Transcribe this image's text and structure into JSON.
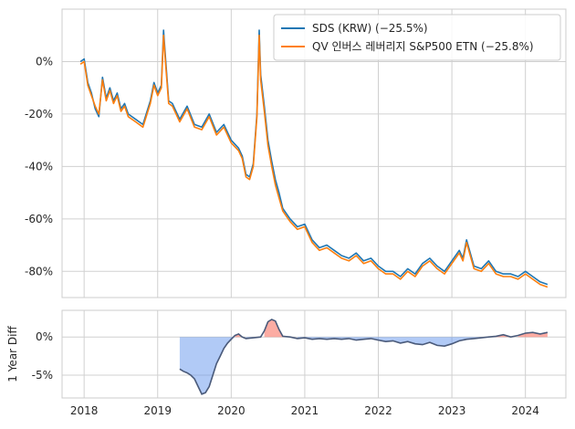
{
  "chart_data": [
    {
      "type": "line",
      "panel": "main",
      "x_ticks": [
        "2018",
        "2019",
        "2020",
        "2021",
        "2022",
        "2023",
        "2024"
      ],
      "y_ticks": [
        "0%",
        "-20%",
        "-40%",
        "-60%",
        "-80%"
      ],
      "y_tick_values": [
        0,
        -20,
        -40,
        -60,
        -80
      ],
      "ylim": [
        -90,
        20
      ],
      "xlim": [
        2017.7,
        2024.55
      ],
      "grid": true,
      "legend_position": "top-right",
      "series": [
        {
          "name": "SDS (KRW) (−25.5%)",
          "color": "#1f77b4",
          "points": [
            [
              2017.95,
              0
            ],
            [
              2018.0,
              1
            ],
            [
              2018.05,
              -8
            ],
            [
              2018.1,
              -12
            ],
            [
              2018.15,
              -18
            ],
            [
              2018.2,
              -21
            ],
            [
              2018.25,
              -6
            ],
            [
              2018.3,
              -14
            ],
            [
              2018.35,
              -10
            ],
            [
              2018.4,
              -15
            ],
            [
              2018.45,
              -12
            ],
            [
              2018.5,
              -18
            ],
            [
              2018.55,
              -16
            ],
            [
              2018.6,
              -20
            ],
            [
              2018.7,
              -22
            ],
            [
              2018.8,
              -24
            ],
            [
              2018.9,
              -15
            ],
            [
              2018.95,
              -8
            ],
            [
              2019.0,
              -12
            ],
            [
              2019.05,
              -9
            ],
            [
              2019.08,
              12
            ],
            [
              2019.1,
              4
            ],
            [
              2019.15,
              -15
            ],
            [
              2019.2,
              -16
            ],
            [
              2019.3,
              -22
            ],
            [
              2019.4,
              -17
            ],
            [
              2019.5,
              -24
            ],
            [
              2019.6,
              -25
            ],
            [
              2019.7,
              -20
            ],
            [
              2019.8,
              -27
            ],
            [
              2019.9,
              -24
            ],
            [
              2020.0,
              -30
            ],
            [
              2020.1,
              -33
            ],
            [
              2020.15,
              -36
            ],
            [
              2020.2,
              -43
            ],
            [
              2020.25,
              -44
            ],
            [
              2020.3,
              -39
            ],
            [
              2020.35,
              -20
            ],
            [
              2020.38,
              12
            ],
            [
              2020.4,
              -5
            ],
            [
              2020.45,
              -17
            ],
            [
              2020.5,
              -30
            ],
            [
              2020.55,
              -38
            ],
            [
              2020.6,
              -45
            ],
            [
              2020.65,
              -50
            ],
            [
              2020.7,
              -56
            ],
            [
              2020.8,
              -60
            ],
            [
              2020.9,
              -63
            ],
            [
              2021.0,
              -62
            ],
            [
              2021.1,
              -68
            ],
            [
              2021.2,
              -71
            ],
            [
              2021.3,
              -70
            ],
            [
              2021.4,
              -72
            ],
            [
              2021.5,
              -74
            ],
            [
              2021.6,
              -75
            ],
            [
              2021.7,
              -73
            ],
            [
              2021.8,
              -76
            ],
            [
              2021.9,
              -75
            ],
            [
              2022.0,
              -78
            ],
            [
              2022.1,
              -80
            ],
            [
              2022.2,
              -80
            ],
            [
              2022.3,
              -82
            ],
            [
              2022.4,
              -79
            ],
            [
              2022.5,
              -81
            ],
            [
              2022.6,
              -77
            ],
            [
              2022.7,
              -75
            ],
            [
              2022.8,
              -78
            ],
            [
              2022.9,
              -80
            ],
            [
              2023.0,
              -76
            ],
            [
              2023.1,
              -72
            ],
            [
              2023.15,
              -75
            ],
            [
              2023.2,
              -68
            ],
            [
              2023.3,
              -78
            ],
            [
              2023.4,
              -79
            ],
            [
              2023.5,
              -76
            ],
            [
              2023.6,
              -80
            ],
            [
              2023.7,
              -81
            ],
            [
              2023.8,
              -81
            ],
            [
              2023.9,
              -82
            ],
            [
              2024.0,
              -80
            ],
            [
              2024.1,
              -82
            ],
            [
              2024.2,
              -84
            ],
            [
              2024.3,
              -85
            ]
          ]
        },
        {
          "name": "QV 인버스 레버리지 S&P500 ETN (−25.8%)",
          "color": "#ff7f0e",
          "points": [
            [
              2017.95,
              -1
            ],
            [
              2018.0,
              0
            ],
            [
              2018.05,
              -9
            ],
            [
              2018.1,
              -13
            ],
            [
              2018.15,
              -17
            ],
            [
              2018.2,
              -20
            ],
            [
              2018.25,
              -7
            ],
            [
              2018.3,
              -15
            ],
            [
              2018.35,
              -11
            ],
            [
              2018.4,
              -16
            ],
            [
              2018.45,
              -13
            ],
            [
              2018.5,
              -19
            ],
            [
              2018.55,
              -17
            ],
            [
              2018.6,
              -21
            ],
            [
              2018.7,
              -23
            ],
            [
              2018.8,
              -25
            ],
            [
              2018.9,
              -16
            ],
            [
              2018.95,
              -9
            ],
            [
              2019.0,
              -13
            ],
            [
              2019.05,
              -10
            ],
            [
              2019.08,
              10
            ],
            [
              2019.1,
              2
            ],
            [
              2019.15,
              -16
            ],
            [
              2019.2,
              -17
            ],
            [
              2019.3,
              -23
            ],
            [
              2019.4,
              -18
            ],
            [
              2019.5,
              -25
            ],
            [
              2019.6,
              -26
            ],
            [
              2019.7,
              -21
            ],
            [
              2019.8,
              -28
            ],
            [
              2019.9,
              -25
            ],
            [
              2020.0,
              -31
            ],
            [
              2020.1,
              -34
            ],
            [
              2020.15,
              -37
            ],
            [
              2020.2,
              -44
            ],
            [
              2020.25,
              -45
            ],
            [
              2020.3,
              -40
            ],
            [
              2020.35,
              -21
            ],
            [
              2020.38,
              10
            ],
            [
              2020.4,
              -7
            ],
            [
              2020.45,
              -19
            ],
            [
              2020.5,
              -32
            ],
            [
              2020.55,
              -40
            ],
            [
              2020.6,
              -47
            ],
            [
              2020.65,
              -52
            ],
            [
              2020.7,
              -57
            ],
            [
              2020.8,
              -61
            ],
            [
              2020.9,
              -64
            ],
            [
              2021.0,
              -63
            ],
            [
              2021.1,
              -69
            ],
            [
              2021.2,
              -72
            ],
            [
              2021.3,
              -71
            ],
            [
              2021.4,
              -73
            ],
            [
              2021.5,
              -75
            ],
            [
              2021.6,
              -76
            ],
            [
              2021.7,
              -74
            ],
            [
              2021.8,
              -77
            ],
            [
              2021.9,
              -76
            ],
            [
              2022.0,
              -79
            ],
            [
              2022.1,
              -81
            ],
            [
              2022.2,
              -81
            ],
            [
              2022.3,
              -83
            ],
            [
              2022.4,
              -80
            ],
            [
              2022.5,
              -82
            ],
            [
              2022.6,
              -78
            ],
            [
              2022.7,
              -76
            ],
            [
              2022.8,
              -79
            ],
            [
              2022.9,
              -81
            ],
            [
              2023.0,
              -77
            ],
            [
              2023.1,
              -73
            ],
            [
              2023.15,
              -76
            ],
            [
              2023.2,
              -69
            ],
            [
              2023.3,
              -79
            ],
            [
              2023.4,
              -80
            ],
            [
              2023.5,
              -77
            ],
            [
              2023.6,
              -81
            ],
            [
              2023.7,
              -82
            ],
            [
              2023.8,
              -82
            ],
            [
              2023.9,
              -83
            ],
            [
              2024.0,
              -81
            ],
            [
              2024.1,
              -83
            ],
            [
              2024.2,
              -85
            ],
            [
              2024.3,
              -86
            ]
          ]
        }
      ]
    },
    {
      "type": "area",
      "panel": "diff",
      "ylabel": "1 Year Diff",
      "y_ticks": [
        "0%",
        "-5%"
      ],
      "y_tick_values": [
        0,
        -5
      ],
      "ylim": [
        -8,
        3.5
      ],
      "xlim": [
        2017.7,
        2024.55
      ],
      "grid": true,
      "positive_color": "#fa8072",
      "negative_color": "#6495ed",
      "line_color": "#4a5a7a",
      "points": [
        [
          2019.3,
          -4.2
        ],
        [
          2019.35,
          -4.5
        ],
        [
          2019.4,
          -4.7
        ],
        [
          2019.45,
          -5.0
        ],
        [
          2019.5,
          -5.5
        ],
        [
          2019.55,
          -6.5
        ],
        [
          2019.6,
          -7.5
        ],
        [
          2019.65,
          -7.3
        ],
        [
          2019.7,
          -6.5
        ],
        [
          2019.75,
          -5.0
        ],
        [
          2019.8,
          -3.5
        ],
        [
          2019.85,
          -2.5
        ],
        [
          2019.9,
          -1.5
        ],
        [
          2019.95,
          -0.8
        ],
        [
          2020.0,
          -0.3
        ],
        [
          2020.05,
          0.2
        ],
        [
          2020.1,
          0.4
        ],
        [
          2020.15,
          0.0
        ],
        [
          2020.2,
          -0.2
        ],
        [
          2020.3,
          -0.1
        ],
        [
          2020.4,
          0.0
        ],
        [
          2020.45,
          0.8
        ],
        [
          2020.5,
          2.0
        ],
        [
          2020.55,
          2.3
        ],
        [
          2020.6,
          2.1
        ],
        [
          2020.65,
          1.0
        ],
        [
          2020.7,
          0.1
        ],
        [
          2020.8,
          0.0
        ],
        [
          2020.9,
          -0.2
        ],
        [
          2021.0,
          -0.1
        ],
        [
          2021.1,
          -0.3
        ],
        [
          2021.2,
          -0.2
        ],
        [
          2021.3,
          -0.3
        ],
        [
          2021.4,
          -0.2
        ],
        [
          2021.5,
          -0.3
        ],
        [
          2021.6,
          -0.2
        ],
        [
          2021.7,
          -0.4
        ],
        [
          2021.8,
          -0.3
        ],
        [
          2021.9,
          -0.2
        ],
        [
          2022.0,
          -0.4
        ],
        [
          2022.1,
          -0.6
        ],
        [
          2022.2,
          -0.5
        ],
        [
          2022.3,
          -0.8
        ],
        [
          2022.4,
          -0.6
        ],
        [
          2022.5,
          -0.9
        ],
        [
          2022.6,
          -1.0
        ],
        [
          2022.7,
          -0.7
        ],
        [
          2022.8,
          -1.1
        ],
        [
          2022.9,
          -1.2
        ],
        [
          2023.0,
          -0.9
        ],
        [
          2023.1,
          -0.5
        ],
        [
          2023.2,
          -0.3
        ],
        [
          2023.3,
          -0.2
        ],
        [
          2023.4,
          -0.1
        ],
        [
          2023.5,
          0.0
        ],
        [
          2023.6,
          0.1
        ],
        [
          2023.7,
          0.3
        ],
        [
          2023.8,
          0.0
        ],
        [
          2023.9,
          0.2
        ],
        [
          2024.0,
          0.5
        ],
        [
          2024.1,
          0.6
        ],
        [
          2024.2,
          0.4
        ],
        [
          2024.3,
          0.6
        ]
      ]
    }
  ]
}
